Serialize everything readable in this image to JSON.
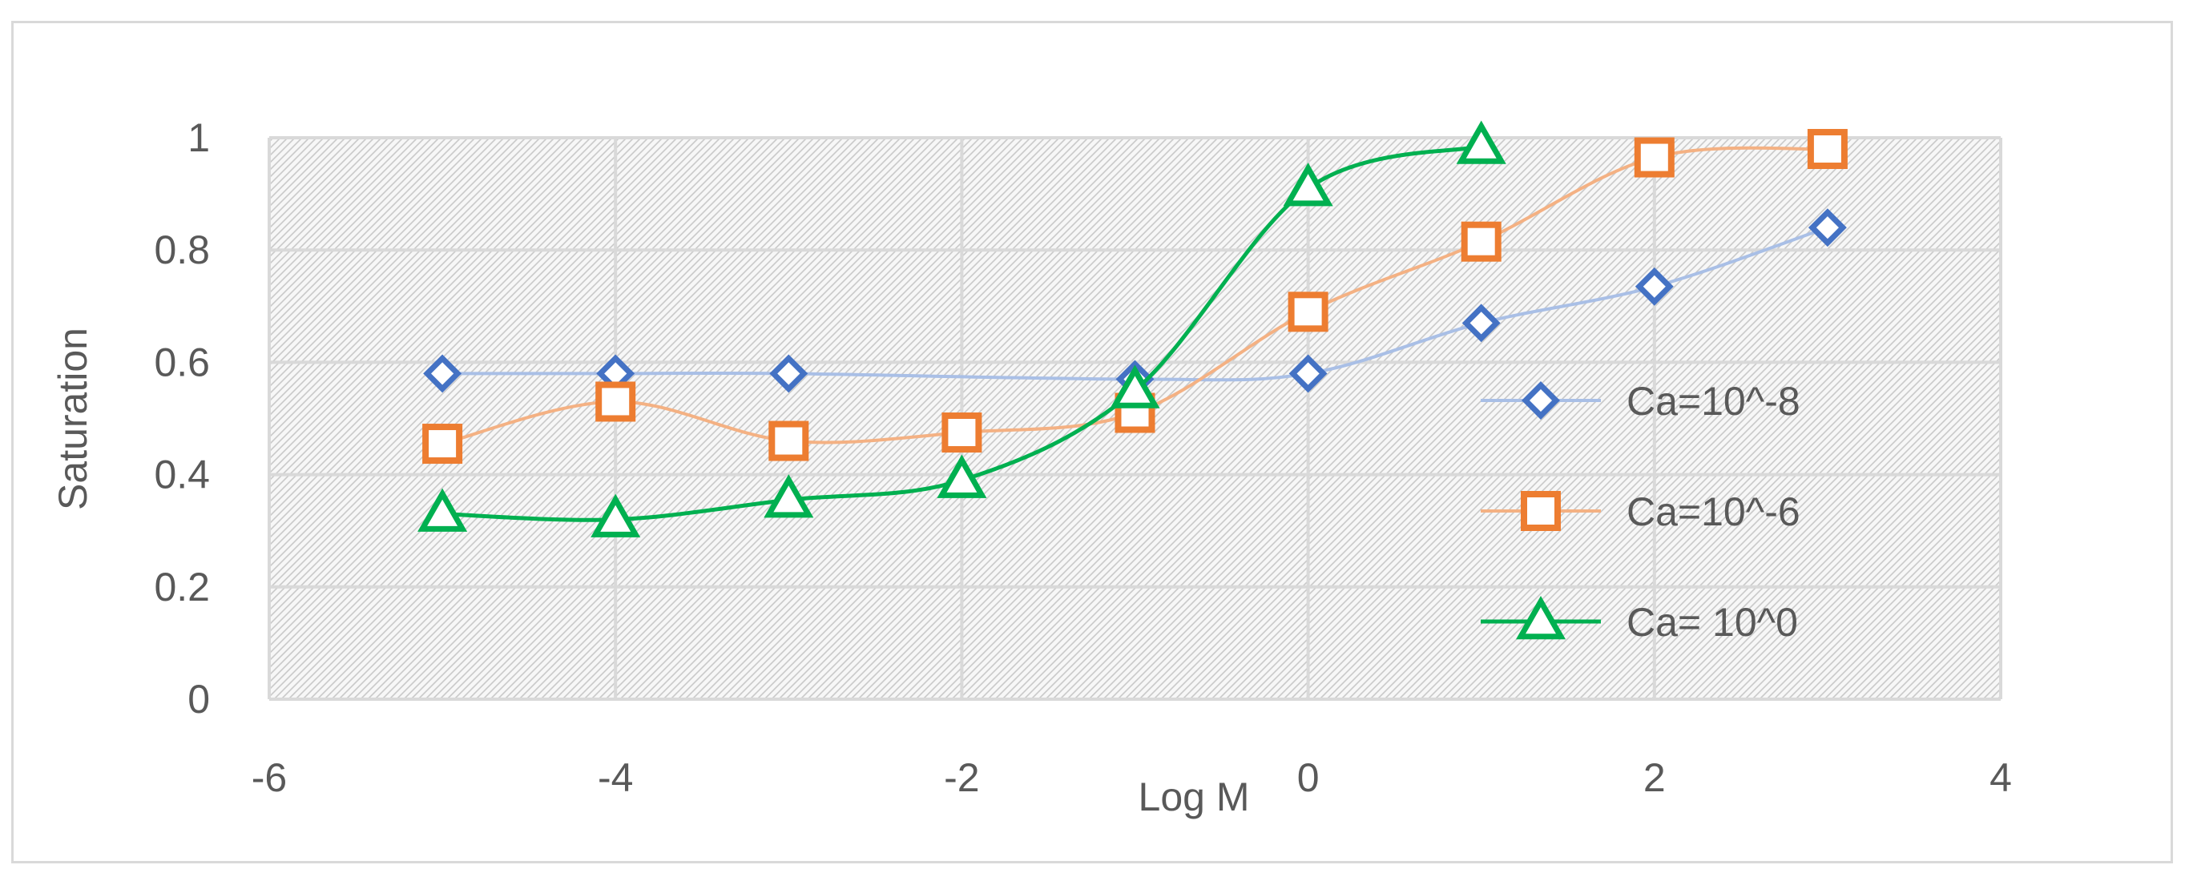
{
  "chart_data": {
    "type": "scatter",
    "title": "",
    "xlabel": "Log M",
    "ylabel": "Saturation",
    "xlim": [
      -6,
      4
    ],
    "ylim": [
      0,
      1
    ],
    "x_ticks": [
      "-6",
      "-4",
      "-2",
      "0",
      "2",
      "4"
    ],
    "y_ticks": [
      "0",
      "0.2",
      "0.4",
      "0.6",
      "0.8",
      "1"
    ],
    "grid": true,
    "plot_background": "hatched light gray",
    "smoothed_lines": true,
    "legend_position": "right-inside",
    "series": [
      {
        "name": "Ca=10^-8",
        "color": "#4472c4",
        "line_color": "#a9bfe6",
        "marker": "diamond",
        "points": [
          [
            -5,
            0.58
          ],
          [
            -4,
            0.58
          ],
          [
            -3,
            0.58
          ],
          [
            -1,
            0.57
          ],
          [
            0,
            0.58
          ],
          [
            1,
            0.67
          ],
          [
            2,
            0.735
          ],
          [
            3,
            0.84
          ]
        ]
      },
      {
        "name": "Ca=10^-6",
        "color": "#ed7d31",
        "line_color": "#f4b183",
        "marker": "square",
        "points": [
          [
            -5,
            0.455
          ],
          [
            -4,
            0.53
          ],
          [
            -3,
            0.46
          ],
          [
            -2,
            0.475
          ],
          [
            -1,
            0.51
          ],
          [
            0,
            0.69
          ],
          [
            1,
            0.815
          ],
          [
            2,
            0.965
          ],
          [
            3,
            0.98
          ]
        ]
      },
      {
        "name": "Ca= 10^0",
        "color": "#00b050",
        "line_color": "#00b050",
        "marker": "triangle",
        "points": [
          [
            -5,
            0.33
          ],
          [
            -4,
            0.32
          ],
          [
            -3,
            0.355
          ],
          [
            -2,
            0.39
          ],
          [
            -1,
            0.55
          ],
          [
            0,
            0.91
          ],
          [
            1,
            0.985
          ]
        ]
      }
    ]
  }
}
